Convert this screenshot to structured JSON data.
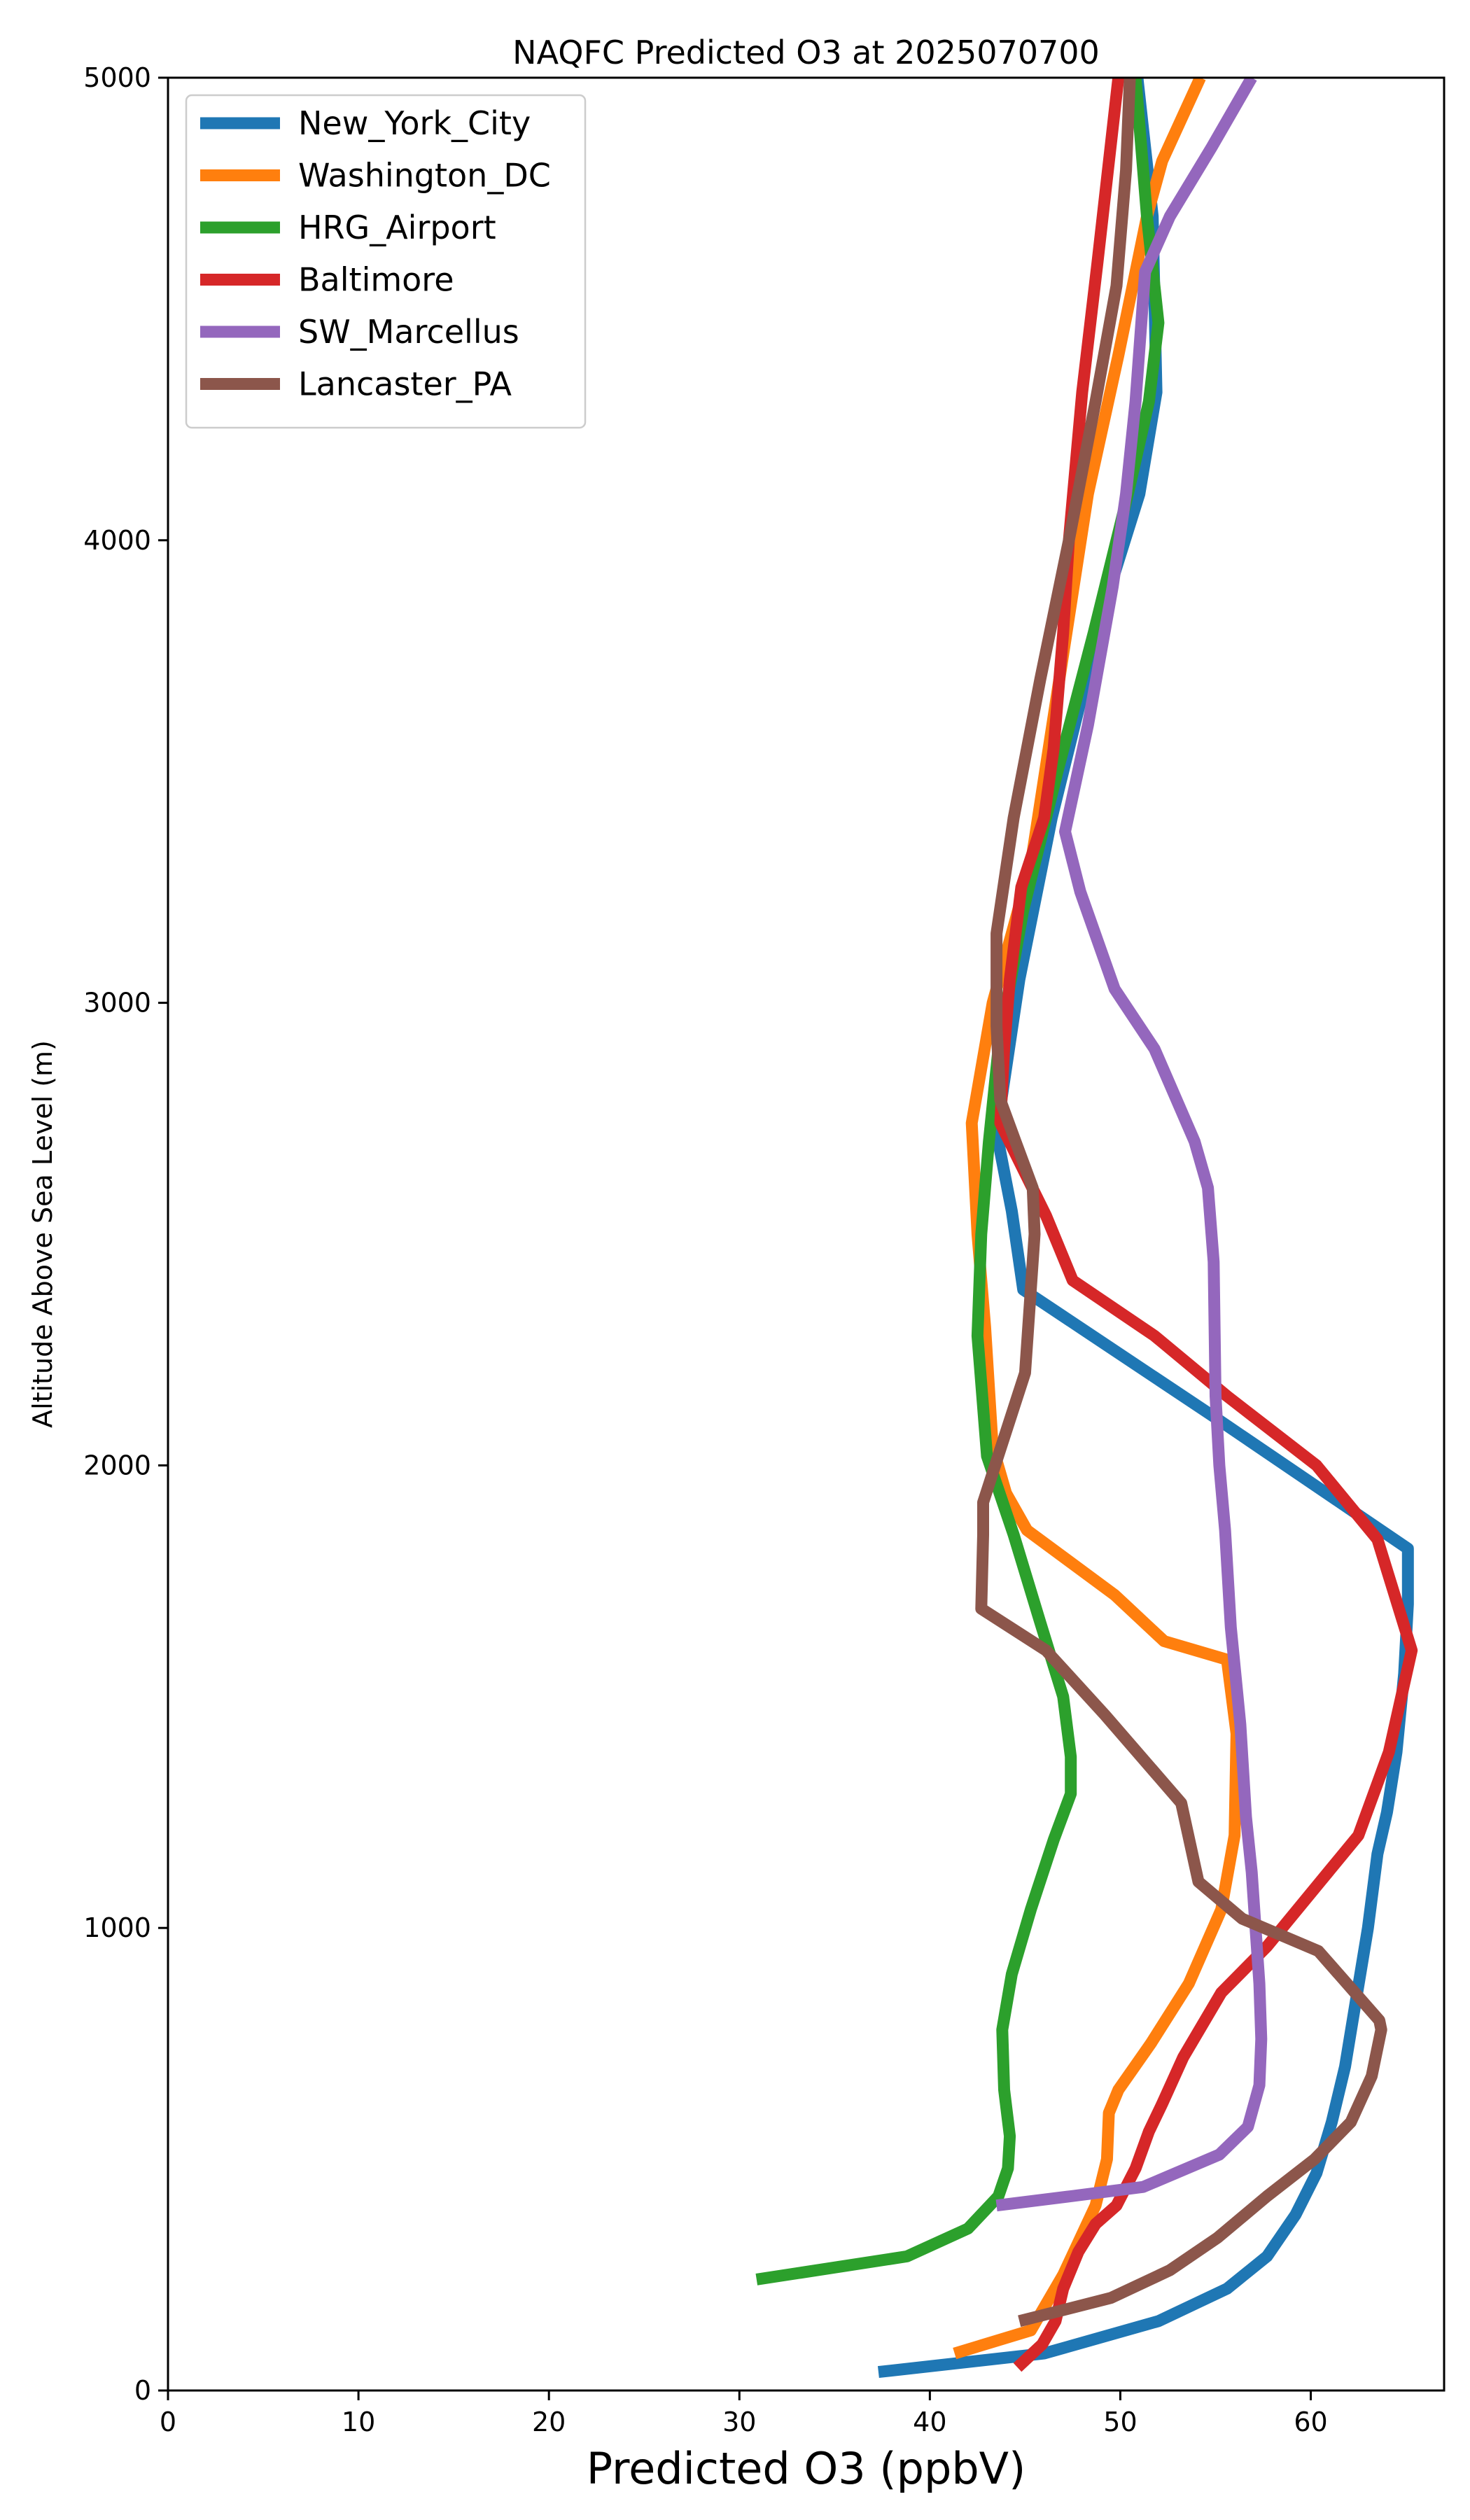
{
  "chart_data": {
    "type": "line",
    "title": "NAQFC Predicted O3 at 2025070700",
    "xlabel": "Predicted O3 (ppbV)",
    "ylabel": "Altitude Above Sea Level (m)",
    "xlim": [
      0,
      67
    ],
    "ylim": [
      0,
      5000
    ],
    "xticks": [
      0,
      10,
      20,
      30,
      40,
      50,
      60
    ],
    "yticks": [
      0,
      1000,
      2000,
      3000,
      4000,
      5000
    ],
    "grid": false,
    "legend": "upper left",
    "series": [
      {
        "name": "New_York_City",
        "color": "#1f77b4",
        "x": [
          37.3,
          46.0,
          52.0,
          55.6,
          57.7,
          59.2,
          60.3,
          61.1,
          61.8,
          62.4,
          63.0,
          63.5,
          64.0,
          64.5,
          64.9,
          65.1,
          65.1,
          55.1,
          44.9,
          44.3,
          43.5,
          44.7,
          46.4,
          49.1,
          51.0,
          51.9,
          51.7,
          50.9
        ],
        "y": [
          40,
          80,
          150,
          220,
          290,
          380,
          470,
          580,
          700,
          850,
          1000,
          1160,
          1250,
          1380,
          1550,
          1700,
          1820,
          2100,
          2380,
          2550,
          2720,
          3050,
          3400,
          3850,
          4100,
          4320,
          4700,
          5000
        ]
      },
      {
        "name": "Washington_DC",
        "color": "#ff7f0e",
        "x": [
          41.3,
          45.3,
          47.0,
          48.7,
          49.3,
          49.4,
          49.9,
          51.6,
          53.6,
          55.3,
          56.0,
          56.1,
          55.6,
          52.3,
          49.7,
          45.1,
          44.0,
          43.3,
          42.9,
          42.5,
          42.2,
          43.3,
          45.3,
          46.8,
          48.3,
          49.9,
          51.4,
          52.2,
          54.2
        ],
        "y": [
          80,
          130,
          250,
          400,
          500,
          600,
          650,
          750,
          880,
          1040,
          1200,
          1420,
          1580,
          1620,
          1720,
          1860,
          1940,
          2040,
          2300,
          2500,
          2740,
          3000,
          3300,
          3700,
          4100,
          4400,
          4700,
          4820,
          5000
        ]
      },
      {
        "name": "HRG_Airport",
        "color": "#2ca02c",
        "x": [
          30.9,
          38.8,
          42.0,
          43.6,
          44.1,
          44.2,
          43.9,
          43.8,
          44.3,
          45.3,
          46.5,
          47.4,
          47.4,
          47.0,
          45.8,
          44.4,
          43.0,
          42.5,
          42.7,
          43.1,
          43.6,
          44.9,
          46.7,
          48.6,
          50.4,
          51.5,
          52.0,
          51.4,
          50.8
        ],
        "y": [
          240,
          290,
          350,
          420,
          480,
          550,
          650,
          780,
          900,
          1040,
          1190,
          1290,
          1370,
          1500,
          1660,
          1850,
          2020,
          2280,
          2500,
          2700,
          2900,
          3200,
          3500,
          3800,
          4100,
          4300,
          4470,
          4700,
          5000
        ]
      },
      {
        "name": "Baltimore",
        "color": "#d62728",
        "x": [
          44.6,
          45.9,
          46.6,
          47.0,
          47.8,
          48.7,
          49.8,
          50.8,
          51.5,
          52.2,
          53.3,
          55.3,
          57.7,
          60.5,
          62.5,
          64.1,
          65.3,
          63.5,
          60.3,
          55.6,
          51.8,
          47.5,
          46.1,
          43.7,
          43.9,
          44.2,
          44.8,
          46.0,
          46.5,
          47.0,
          47.3,
          48.0,
          48.8,
          49.9
        ],
        "y": [
          50,
          100,
          150,
          220,
          300,
          360,
          400,
          480,
          560,
          620,
          720,
          860,
          960,
          1100,
          1200,
          1380,
          1600,
          1840,
          2000,
          2150,
          2280,
          2400,
          2540,
          2740,
          2900,
          3050,
          3250,
          3400,
          3550,
          3800,
          4000,
          4320,
          4600,
          5000
        ]
      },
      {
        "name": "SW_Marcellus",
        "color": "#9467bd",
        "x": [
          43.5,
          47.4,
          51.2,
          55.2,
          56.7,
          57.3,
          57.4,
          57.3,
          57.1,
          56.9,
          56.6,
          56.3,
          55.8,
          55.5,
          55.2,
          55.0,
          54.9,
          54.6,
          53.9,
          51.8,
          49.7,
          47.9,
          47.1,
          48.3,
          49.6,
          50.3,
          50.8,
          51.3,
          52.6,
          54.8,
          56.9
        ],
        "y": [
          400,
          420,
          440,
          510,
          570,
          660,
          760,
          880,
          1000,
          1120,
          1240,
          1440,
          1650,
          1860,
          2000,
          2150,
          2440,
          2600,
          2700,
          2900,
          3030,
          3240,
          3370,
          3600,
          3900,
          4100,
          4300,
          4580,
          4700,
          4850,
          5000
        ]
      },
      {
        "name": "Lancaster_PA",
        "color": "#8c564b",
        "x": [
          44.7,
          49.5,
          52.6,
          55.1,
          57.7,
          60.2,
          62.1,
          63.2,
          63.7,
          63.6,
          60.4,
          56.4,
          54.1,
          53.2,
          49.2,
          46.1,
          42.7,
          42.8,
          42.8,
          45.0,
          45.5,
          45.4,
          44.5,
          43.7,
          43.5,
          43.5,
          44.4,
          45.8,
          47.3,
          48.7,
          49.8,
          50.3,
          50.5
        ],
        "y": [
          150,
          200,
          260,
          330,
          420,
          500,
          580,
          680,
          780,
          800,
          950,
          1020,
          1100,
          1270,
          1460,
          1600,
          1690,
          1850,
          1920,
          2200,
          2500,
          2600,
          2700,
          2790,
          2950,
          3150,
          3400,
          3700,
          4000,
          4300,
          4550,
          4800,
          5000
        ]
      }
    ]
  }
}
